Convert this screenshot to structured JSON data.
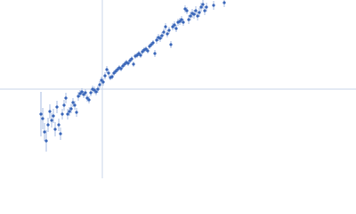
{
  "chart_data": {
    "type": "scatter",
    "xlim": [
      0,
      400
    ],
    "ylim": [
      0,
      200
    ],
    "axhline": 100,
    "axvline": 115,
    "series": [
      {
        "color": "#3b67b9",
        "error_color": "#a8bde3",
        "x": [
          46,
          48,
          50,
          52,
          54,
          56,
          58,
          60,
          62,
          64,
          66,
          68,
          70,
          72,
          74,
          76,
          78,
          80,
          82,
          84,
          86,
          88,
          90,
          92,
          94,
          96,
          98,
          100,
          102,
          104,
          106,
          108,
          110,
          112,
          114,
          116,
          118,
          120,
          122,
          124,
          126,
          128,
          130,
          132,
          134,
          136,
          138,
          140,
          142,
          144,
          146,
          148,
          150,
          152,
          154,
          156,
          158,
          160,
          162,
          164,
          166,
          168,
          170,
          172,
          174,
          176,
          178,
          180,
          182,
          184,
          186,
          188,
          190,
          192,
          194,
          196,
          198,
          200,
          202,
          204,
          206,
          208,
          210,
          212,
          214,
          216,
          218,
          220,
          222,
          224,
          226,
          228,
          230,
          232,
          240,
          252
        ],
        "values": [
          72,
          67,
          52,
          42,
          60,
          75,
          65,
          70,
          55,
          80,
          60,
          50,
          72,
          82,
          90,
          72,
          75,
          78,
          85,
          82,
          74,
          92,
          95,
          97,
          94,
          96,
          90,
          88,
          96,
          100,
          99,
          97,
          100,
          105,
          110,
          108,
          115,
          122,
          118,
          113,
          114,
          118,
          120,
          122,
          124,
          123,
          126,
          128,
          130,
          129,
          132,
          134,
          128,
          137,
          138,
          140,
          138,
          142,
          144,
          145,
          143,
          148,
          150,
          152,
          140,
          155,
          158,
          157,
          160,
          164,
          170,
          162,
          166,
          150,
          170,
          172,
          168,
          175,
          176,
          178,
          175,
          190,
          188,
          178,
          182,
          185,
          184,
          188,
          182,
          186,
          192,
          195,
          188,
          192,
          194,
          197
        ],
        "errors": [
          25,
          12,
          10,
          12,
          8,
          8,
          8,
          8,
          8,
          7,
          7,
          7,
          6,
          6,
          6,
          6,
          5,
          5,
          5,
          5,
          5,
          5,
          4,
          4,
          4,
          4,
          4,
          4,
          4,
          4,
          4,
          4,
          4,
          4,
          4,
          4,
          4,
          4,
          4,
          3,
          3,
          3,
          3,
          3,
          3,
          3,
          3,
          3,
          3,
          3,
          3,
          3,
          3,
          3,
          3,
          3,
          3,
          3,
          3,
          3,
          3,
          3,
          3,
          3,
          4,
          4,
          4,
          4,
          4,
          4,
          4,
          4,
          4,
          4,
          4,
          4,
          4,
          4,
          4,
          4,
          4,
          4,
          4,
          5,
          5,
          5,
          5,
          5,
          5,
          5,
          5,
          5,
          5,
          5,
          5,
          5
        ]
      }
    ]
  }
}
